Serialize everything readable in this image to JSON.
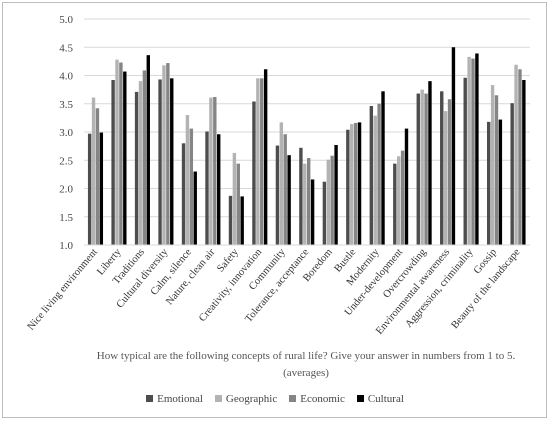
{
  "chart_data": {
    "type": "bar",
    "title": "",
    "xlabel": "How typical are the following concepts of rural life? Give your answer in numbers from 1 to 5. (averages)",
    "ylabel": "",
    "ylim": [
      1.0,
      5.0
    ],
    "yticks": [
      "1.0",
      "1.5",
      "2.0",
      "2.5",
      "3.0",
      "3.5",
      "4.0",
      "4.5",
      "5.0"
    ],
    "grid": true,
    "legend_position": "bottom",
    "categories": [
      "Nice living environment",
      "Liberty",
      "Traditions",
      "Cultural diversity",
      "Calm, silence",
      "Nature, clean air",
      "Safety",
      "Creativity, innovation",
      "Community",
      "Tolerance, acceptance",
      "Boredom",
      "Bustle",
      "Modernity",
      "Under-development",
      "Overcrowding",
      "Environmental awareness",
      "Aggression, criminality",
      "Gossip",
      "Beauty of the landscape"
    ],
    "series": [
      {
        "name": "Emotional",
        "color": "#4d4d4d",
        "values": [
          2.97,
          3.92,
          3.71,
          3.93,
          2.8,
          3.01,
          1.87,
          3.54,
          2.76,
          2.72,
          2.12,
          3.04,
          3.46,
          2.44,
          3.68,
          3.72,
          3.96,
          3.18,
          3.51
        ]
      },
      {
        "name": "Geographic",
        "color": "#b3b3b3",
        "values": [
          3.61,
          4.28,
          3.9,
          4.18,
          3.3,
          3.61,
          2.63,
          3.95,
          3.17,
          2.44,
          2.51,
          3.14,
          3.29,
          2.57,
          3.75,
          3.37,
          4.33,
          3.83,
          4.19
        ]
      },
      {
        "name": "Economic",
        "color": "#858585",
        "values": [
          3.42,
          4.23,
          4.09,
          4.22,
          3.06,
          3.62,
          2.44,
          3.95,
          2.96,
          2.54,
          2.58,
          3.16,
          3.5,
          2.67,
          3.68,
          3.58,
          4.3,
          3.65,
          4.11
        ]
      },
      {
        "name": "Cultural",
        "color": "#000000",
        "values": [
          2.99,
          4.07,
          4.36,
          3.95,
          2.3,
          2.96,
          1.86,
          4.11,
          2.59,
          2.16,
          2.77,
          3.17,
          3.72,
          3.06,
          3.9,
          4.5,
          4.39,
          3.22,
          3.92
        ]
      }
    ]
  }
}
